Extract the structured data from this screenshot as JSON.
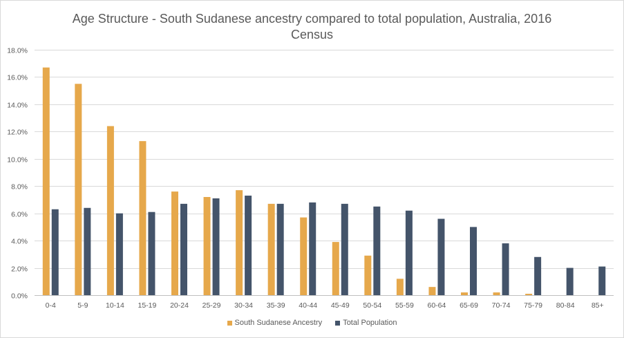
{
  "chart_data": {
    "type": "bar",
    "title_line1": "Age Structure - South Sudanese ancestry compared to total population, Australia, 2016",
    "title_line2": "Census",
    "categories": [
      "0-4",
      "5-9",
      "10-14",
      "15-19",
      "20-24",
      "25-29",
      "30-34",
      "35-39",
      "40-44",
      "45-49",
      "50-54",
      "55-59",
      "60-64",
      "65-69",
      "70-74",
      "75-79",
      "80-84",
      "85+"
    ],
    "series": [
      {
        "name": "South Sudanese Ancestry",
        "color": "#E6A84B",
        "values": [
          16.7,
          15.5,
          12.4,
          11.3,
          7.6,
          7.2,
          7.7,
          6.7,
          5.7,
          3.9,
          2.9,
          1.2,
          0.6,
          0.2,
          0.2,
          0.1,
          0.0,
          0.0
        ]
      },
      {
        "name": "Total Population",
        "color": "#44546A",
        "values": [
          6.3,
          6.4,
          6.0,
          6.1,
          6.7,
          7.1,
          7.3,
          6.7,
          6.8,
          6.7,
          6.5,
          6.2,
          5.6,
          5.0,
          3.8,
          2.8,
          2.0,
          2.1
        ]
      }
    ],
    "y_ticks": [
      "0.0%",
      "2.0%",
      "4.0%",
      "6.0%",
      "8.0%",
      "10.0%",
      "12.0%",
      "14.0%",
      "16.0%",
      "18.0%"
    ],
    "ylim": [
      0,
      18
    ],
    "grid": true,
    "legend_position": "bottom"
  }
}
